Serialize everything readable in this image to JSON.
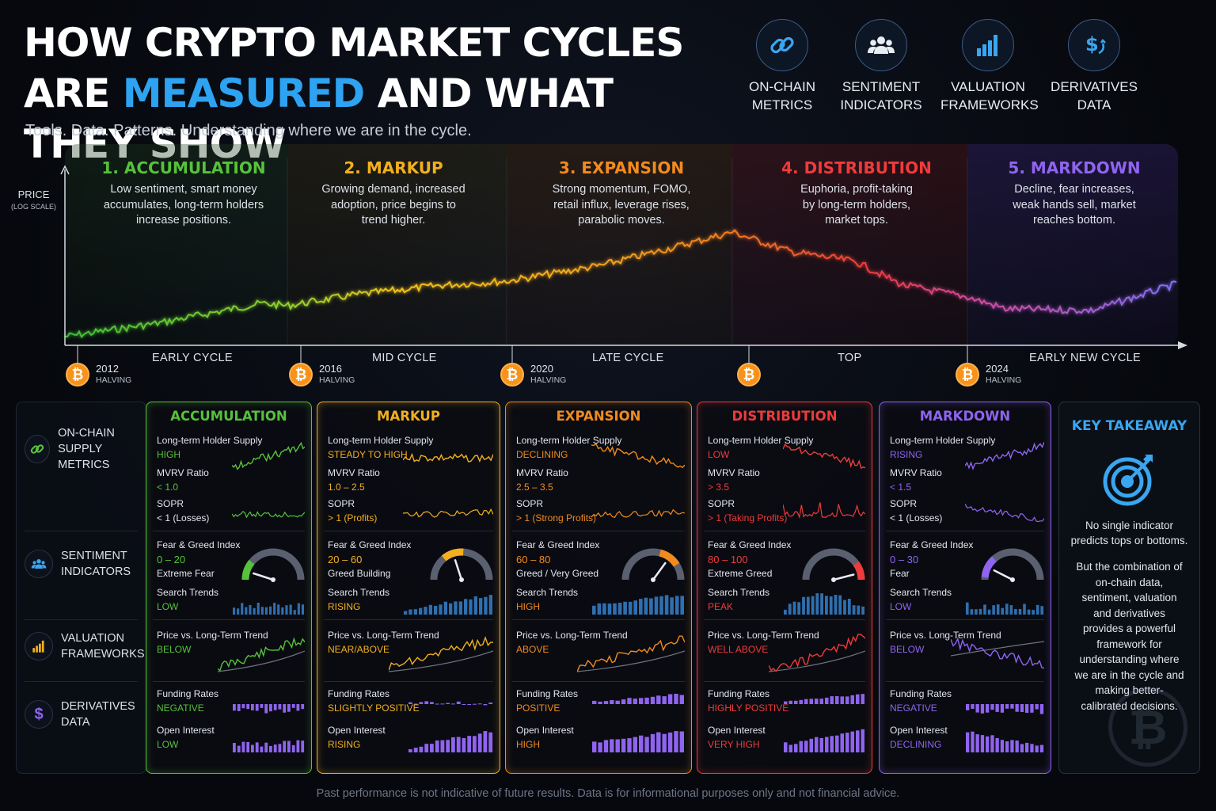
{
  "header": {
    "title_line1": "HOW CRYPTO MARKET CYCLES",
    "title_line2_pre": "ARE ",
    "title_line2_hl": "MEASURED",
    "title_line2_post": " AND WHAT THEY SHOW",
    "subtitle": "Tools. Data. Patterns. Understanding where we are in the cycle.",
    "accent_color": "#2ea3f2"
  },
  "tools": [
    {
      "icon": "chain-link-icon",
      "line1": "ON-CHAIN",
      "line2": "METRICS"
    },
    {
      "icon": "people-group-icon",
      "line1": "SENTIMENT",
      "line2": "INDICATORS"
    },
    {
      "icon": "bar-chart-icon",
      "line1": "VALUATION",
      "line2": "FRAMEWORKS"
    },
    {
      "icon": "dollar-cycle-icon",
      "line1": "DERIVATIVES",
      "line2": "DATA"
    }
  ],
  "cycle_chart": {
    "y_label": "PRICE",
    "y_sublabel": "(LOG SCALE)",
    "phases": [
      {
        "name": "1. ACCUMULATION",
        "color": "#56c23a",
        "desc1": "Low sentiment, smart money",
        "desc2": "accumulates, long-term holders",
        "desc3": "increase positions."
      },
      {
        "name": "2. MARKUP",
        "color": "#f2b01e",
        "desc1": "Growing demand, increased",
        "desc2": "adoption, price begins to",
        "desc3": "trend higher."
      },
      {
        "name": "3. EXPANSION",
        "color": "#f28a1e",
        "desc1": "Strong momentum, FOMO,",
        "desc2": "retail influx, leverage rises,",
        "desc3": "parabolic moves."
      },
      {
        "name": "4. DISTRIBUTION",
        "color": "#ee3b3b",
        "desc1": "Euphoria, profit-taking",
        "desc2": "by long-term holders,",
        "desc3": "market tops."
      },
      {
        "name": "5. MARKDOWN",
        "color": "#8f64f0",
        "desc1": "Decline, fear increases,",
        "desc2": "weak hands sell, market",
        "desc3": "reaches bottom."
      }
    ],
    "cycle_labels": [
      "EARLY CYCLE",
      "MID CYCLE",
      "LATE CYCLE",
      "TOP",
      "EARLY NEW CYCLE"
    ],
    "halvings": [
      {
        "year": "2012",
        "label": "HALVING"
      },
      {
        "year": "2016",
        "label": "HALVING"
      },
      {
        "year": "2020",
        "label": "HALVING"
      },
      {
        "year": "",
        "label": ""
      },
      {
        "year": "2024",
        "label": "HALVING"
      }
    ],
    "btc_symbol": "₿"
  },
  "row_headers": [
    {
      "icon": "chain-link-icon",
      "line1": "ON-CHAIN",
      "line2": "SUPPLY METRICS"
    },
    {
      "icon": "people-group-icon",
      "line1": "SENTIMENT",
      "line2": "INDICATORS"
    },
    {
      "icon": "bar-chart-icon",
      "line1": "VALUATION",
      "line2": "FRAMEWORKS"
    },
    {
      "icon": "dollar-icon",
      "line1": "DERIVATIVES",
      "line2": "DATA"
    }
  ],
  "metric_labels": {
    "lth": "Long-term Holder Supply",
    "mvrv": "MVRV Ratio",
    "sopr": "SOPR",
    "fng": "Fear & Greed Index",
    "search": "Search Trends",
    "price_trend": "Price vs. Long-Term Trend",
    "funding": "Funding Rates",
    "oi": "Open Interest"
  },
  "columns": [
    {
      "name": "ACCUMULATION",
      "color": "#56c23a",
      "lth": "HIGH",
      "mvrv": "< 1.0",
      "sopr": "< 1 (Losses)",
      "fng": "0 – 20",
      "fng_desc": "Extreme Fear",
      "fng_level": 0.1,
      "search": "LOW",
      "price_trend": "BELOW",
      "funding": "NEGATIVE",
      "oi": "LOW"
    },
    {
      "name": "MARKUP",
      "color": "#f2b01e",
      "lth": "STEADY TO HIGH",
      "mvrv": "1.0 – 2.5",
      "sopr": "> 1 (Profits)",
      "fng": "20 – 60",
      "fng_desc": "Greed Building",
      "fng_level": 0.4,
      "search": "RISING",
      "price_trend": "NEAR/ABOVE",
      "funding": "SLIGHTLY POSITIVE",
      "oi": "RISING"
    },
    {
      "name": "EXPANSION",
      "color": "#f28a1e",
      "lth": "DECLINING",
      "mvrv": "2.5 – 3.5",
      "sopr": "> 1 (Strong Profits)",
      "fng": "60 – 80",
      "fng_desc": "Greed / Very Greed",
      "fng_level": 0.7,
      "search": "HIGH",
      "price_trend": "ABOVE",
      "funding": "POSITIVE",
      "oi": "HIGH"
    },
    {
      "name": "DISTRIBUTION",
      "color": "#ee3b3b",
      "lth": "LOW",
      "mvrv": "> 3.5",
      "sopr": "> 1 (Taking Profits)",
      "fng": "80 – 100",
      "fng_desc": "Extreme Greed",
      "fng_level": 0.92,
      "search": "PEAK",
      "price_trend": "WELL ABOVE",
      "funding": "HIGHLY POSITIVE",
      "oi": "VERY HIGH"
    },
    {
      "name": "MARKDOWN",
      "color": "#8f64f0",
      "lth": "RISING",
      "mvrv": "< 1.5",
      "sopr": "< 1 (Losses)",
      "fng": "0 – 30",
      "fng_desc": "Fear",
      "fng_level": 0.15,
      "search": "LOW",
      "price_trend": "BELOW",
      "funding": "NEGATIVE",
      "oi": "DECLINING"
    }
  ],
  "key_takeaway": {
    "title": "KEY TAKEAWAY",
    "icon": "target-arrow-icon",
    "p1": "No single indicator predicts tops or bottoms.",
    "p2": "But the combination of on-chain data, sentiment, valuation and derivatives provides a powerful framework for understanding where we are in the cycle and making better-calibrated decisions.",
    "watermark": "₿"
  },
  "disclaimer": "Past performance is not indicative of future results. Data is for informational purposes only and not financial advice."
}
